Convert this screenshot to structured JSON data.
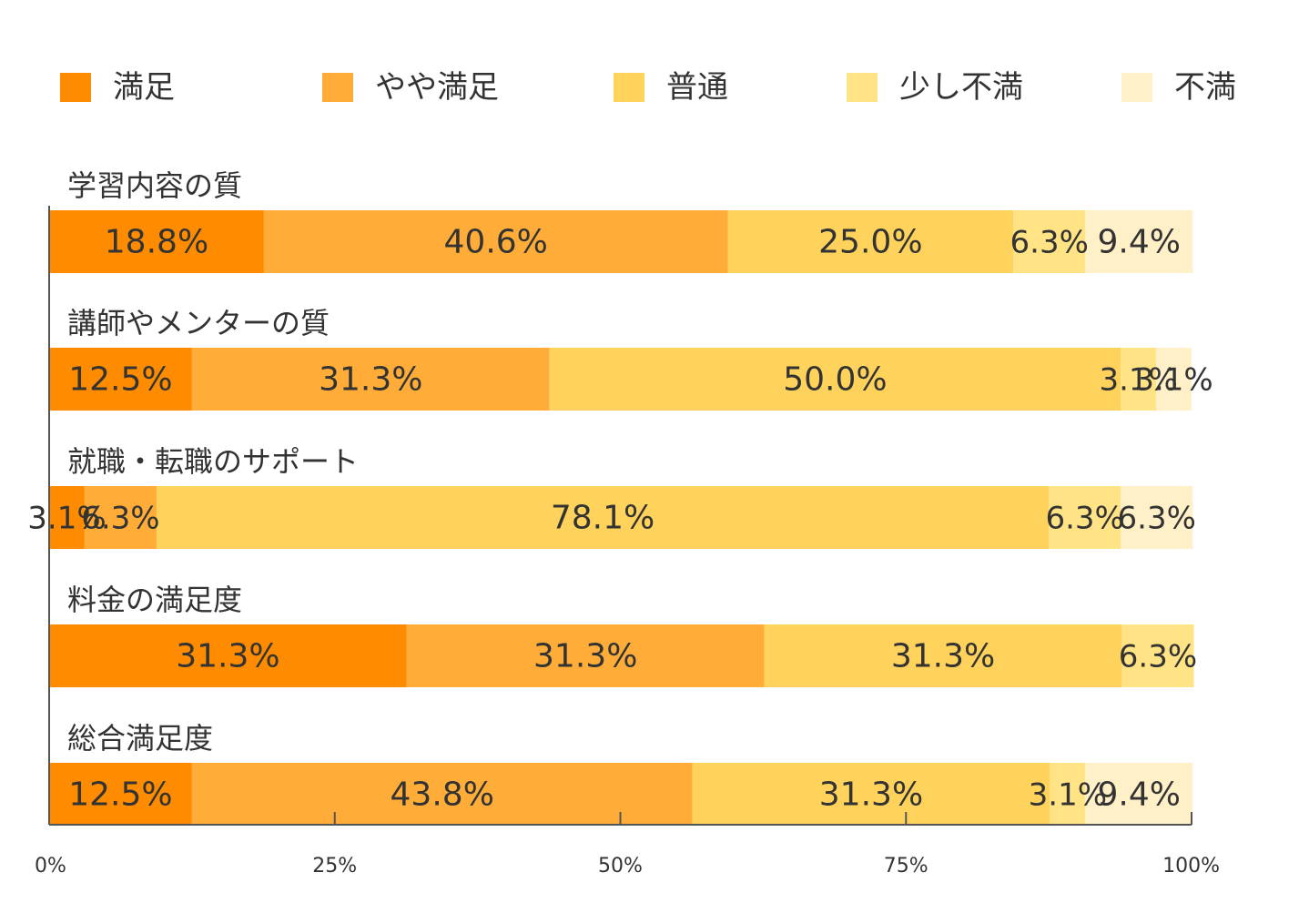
{
  "chart_data": {
    "type": "bar",
    "orientation": "horizontal-stacked-100",
    "categories": [
      "学習内容の質",
      "講師やメンターの質",
      "就職・転職のサポート",
      "料金の満足度",
      "総合満足度"
    ],
    "series": [
      {
        "name": "満足",
        "color": "#FF8C00",
        "values": [
          18.8,
          12.5,
          3.1,
          31.3,
          12.5
        ],
        "labels": [
          "18.8%",
          "12.5%",
          "3.1%",
          "31.3%",
          "12.5%"
        ]
      },
      {
        "name": "やや満足",
        "color": "#FFAD38",
        "values": [
          40.6,
          31.3,
          6.3,
          31.3,
          43.8
        ],
        "labels": [
          "40.6%",
          "31.3%",
          "6.3%",
          "31.3%",
          "43.8%"
        ]
      },
      {
        "name": "普通",
        "color": "#FFD25C",
        "values": [
          25.0,
          50.0,
          78.1,
          31.3,
          31.3
        ],
        "labels": [
          "25.0%",
          "50.0%",
          "78.1%",
          "31.3%",
          "31.3%"
        ]
      },
      {
        "name": "少し不満",
        "color": "#FFE384",
        "values": [
          6.3,
          3.1,
          6.3,
          6.3,
          3.1
        ],
        "labels": [
          "6.3%",
          "3.1%",
          "6.3%",
          "6.3%",
          "3.1%"
        ]
      },
      {
        "name": "不満",
        "color": "#FFF0C8",
        "values": [
          9.4,
          3.1,
          6.3,
          0,
          9.4
        ],
        "labels": [
          "9.4%",
          "3.1%",
          "6.3%",
          "",
          "9.4%"
        ]
      }
    ],
    "x_ticks": [
      "0%",
      "25%",
      "50%",
      "75%",
      "100%"
    ],
    "xlim": [
      0,
      100
    ],
    "legend_position": "top",
    "grid": false
  }
}
